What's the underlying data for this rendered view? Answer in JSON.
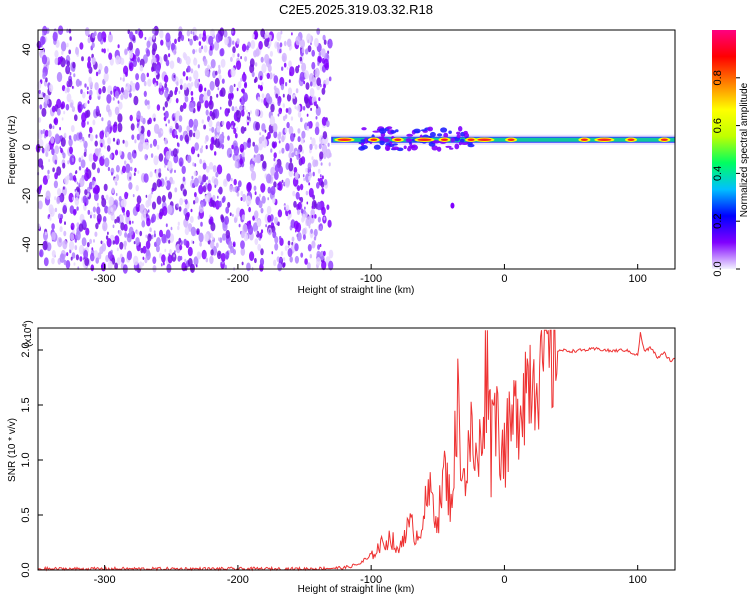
{
  "title": "C2E5.2025.319.03.32.R18",
  "chart_data": [
    {
      "type": "heatmap",
      "xlabel": "Height of straight line (km)",
      "ylabel": "Frequency (Hz)",
      "xlim": [
        -350,
        128
      ],
      "ylim": [
        -50,
        48
      ],
      "x_ticks": [
        -300,
        -200,
        -100,
        0,
        100
      ],
      "y_ticks": [
        -40,
        -20,
        0,
        20,
        40
      ],
      "noise_region_x": [
        -350,
        -130
      ],
      "signal_band_center_hz": 3,
      "colorbar": {
        "label": "Normalized spectral amplitude",
        "range": [
          0,
          1
        ],
        "ticks": [
          "0.0",
          "0.2",
          "0.4",
          "0.6",
          "0.8"
        ],
        "colors": [
          "#f2f2ff",
          "#8000ff",
          "#0000ff",
          "#00c0ff",
          "#00ff60",
          "#c0ff00",
          "#ffff00",
          "#ff8000",
          "#ff0000",
          "#ff0080"
        ]
      }
    },
    {
      "type": "line",
      "xlabel": "Height of straight line (km)",
      "ylabel": "SNR (10 * v/v)",
      "y_exponent": "(x10",
      "y_exponent_power": "4",
      "y_exponent_close": ")",
      "xlim": [
        -350,
        128
      ],
      "ylim": [
        0,
        2.2
      ],
      "x_ticks": [
        -300,
        -200,
        -100,
        0,
        100
      ],
      "y_ticks": [
        "0.0",
        "0.5",
        "1.0",
        "1.5",
        "2.0"
      ],
      "y_tick_values": [
        0,
        0.5,
        1.0,
        1.5,
        2.0
      ],
      "color": "#ee3333",
      "x": [
        -350,
        -300,
        -250,
        -200,
        -150,
        -120,
        -110,
        -100,
        -95,
        -90,
        -85,
        -80,
        -75,
        -70,
        -65,
        -60,
        -55,
        -50,
        -45,
        -40,
        -35,
        -30,
        -25,
        -20,
        -15,
        -12,
        -10,
        -8,
        -5,
        0,
        5,
        10,
        15,
        20,
        25,
        30,
        35,
        40,
        50,
        60,
        70,
        80,
        90,
        95,
        100,
        102,
        105,
        110,
        115,
        120,
        125,
        128
      ],
      "values": [
        0.01,
        0.01,
        0.01,
        0.01,
        0.01,
        0.02,
        0.05,
        0.12,
        0.2,
        0.25,
        0.3,
        0.15,
        0.35,
        0.4,
        0.3,
        0.55,
        0.7,
        0.45,
        0.9,
        0.6,
        1.5,
        0.8,
        1.2,
        0.9,
        1.6,
        2.05,
        1.0,
        1.8,
        1.3,
        1.1,
        1.25,
        1.5,
        1.7,
        1.8,
        1.9,
        1.95,
        1.98,
        2.0,
        1.99,
        2.0,
        2.01,
        1.99,
        2.0,
        1.98,
        1.95,
        2.15,
        1.99,
        2.02,
        1.93,
        1.97,
        1.9,
        1.92
      ]
    }
  ]
}
